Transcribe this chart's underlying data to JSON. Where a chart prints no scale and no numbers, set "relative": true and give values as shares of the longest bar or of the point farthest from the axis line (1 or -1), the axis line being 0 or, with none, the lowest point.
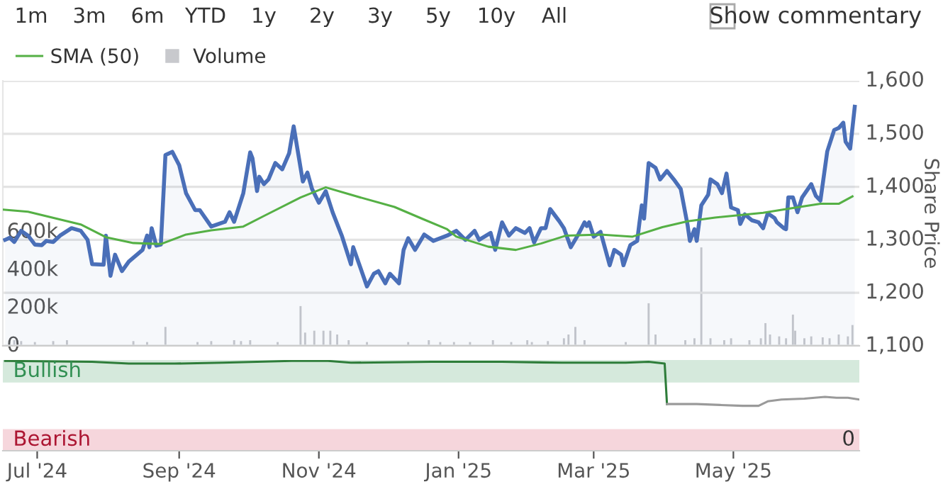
{
  "chart_data": [
    {
      "type": "area",
      "ylabel": "Share Price",
      "legend": "top left",
      "grid": "y",
      "tick_labels": "y",
      "annotations": [
        "1m",
        "3m",
        "6m",
        "YTD",
        "1y",
        "2y",
        "3y",
        "5y",
        "10y",
        "All",
        "Show commentary"
      ],
      "xlim": [
        "2024-06-16",
        "2025-06-25"
      ],
      "ylim": [
        1100,
        1600
      ],
      "yticks": [
        {
          "value": 1100,
          "label": "1,100"
        },
        {
          "value": 1200,
          "label": "1,200"
        },
        {
          "value": 1300,
          "label": "1,300"
        },
        {
          "value": 1400,
          "label": "1,400"
        },
        {
          "value": 1500,
          "label": "1,500"
        },
        {
          "value": 1600,
          "label": "1,600"
        }
      ],
      "y2lim": [
        0,
        1400000
      ],
      "y2ticks": [
        0,
        {
          "value": 200000,
          "label": "200k"
        },
        {
          "value": 400000,
          "label": "400k"
        },
        {
          "value": 600000,
          "label": "600k"
        }
      ],
      "series": [
        {
          "type": "area",
          "color": "#4a6fb8",
          "x": [
            "2024-06-17",
            "2024-06-19",
            "2024-06-21",
            "2024-06-24",
            "2024-06-27",
            "2024-06-30",
            "2024-07-03",
            "2024-07-05",
            "2024-07-08",
            "2024-07-11",
            "2024-07-16",
            "2024-07-20",
            "2024-07-23",
            "2024-07-25",
            "2024-07-30",
            "2024-07-31",
            "2024-08-02",
            "2024-08-04",
            "2024-08-07",
            "2024-08-10",
            "2024-08-16",
            "2024-08-18",
            "2024-08-19",
            "2024-08-20",
            "2024-08-22",
            "2024-08-24",
            "2024-08-26",
            "2024-08-29",
            "2024-09-01",
            "2024-09-04",
            "2024-09-08",
            "2024-09-10",
            "2024-09-15",
            "2024-09-21",
            "2024-09-23",
            "2024-09-25",
            "2024-09-29",
            "2024-10-02",
            "2024-10-03",
            "2024-10-05",
            "2024-10-06",
            "2024-10-08",
            "2024-10-10",
            "2024-10-13",
            "2024-10-16",
            "2024-10-19",
            "2024-10-21",
            "2024-10-25",
            "2024-10-27",
            "2024-10-29",
            "2024-11-01",
            "2024-11-04",
            "2024-11-07",
            "2024-11-11",
            "2024-11-15",
            "2024-11-16",
            "2024-11-22",
            "2024-11-25",
            "2024-11-27",
            "2024-11-30",
            "2024-12-02",
            "2024-12-06",
            "2024-12-08",
            "2024-12-10",
            "2024-12-13",
            "2024-12-17",
            "2024-12-21",
            "2024-12-27",
            "2024-12-31",
            "2025-01-04",
            "2025-01-08",
            "2025-01-10",
            "2025-01-15",
            "2025-01-17",
            "2025-01-20",
            "2025-01-23",
            "2025-01-26",
            "2025-01-30",
            "2025-02-01",
            "2025-02-03",
            "2025-02-06",
            "2025-02-08",
            "2025-02-10",
            "2025-02-14",
            "2025-02-16",
            "2025-02-19",
            "2025-02-22",
            "2025-02-25",
            "2025-02-26",
            "2025-02-27",
            "2025-03-01",
            "2025-03-04",
            "2025-03-08",
            "2025-03-10",
            "2025-03-13",
            "2025-03-14",
            "2025-03-17",
            "2025-03-20",
            "2025-03-21",
            "2025-03-22",
            "2025-03-23",
            "2025-03-25",
            "2025-03-28",
            "2025-03-30",
            "2025-04-02",
            "2025-04-05",
            "2025-04-08",
            "2025-04-11",
            "2025-04-12",
            "2025-04-14",
            "2025-04-15",
            "2025-04-17",
            "2025-04-20",
            "2025-04-21",
            "2025-04-24",
            "2025-04-26",
            "2025-04-28",
            "2025-04-30",
            "2025-05-03",
            "2025-05-04",
            "2025-05-06",
            "2025-05-09",
            "2025-05-12",
            "2025-05-14",
            "2025-05-16",
            "2025-05-19",
            "2025-05-20",
            "2025-05-23",
            "2025-05-24",
            "2025-05-25",
            "2025-05-27",
            "2025-05-29",
            "2025-05-31",
            "2025-06-04",
            "2025-06-06",
            "2025-06-08",
            "2025-06-11",
            "2025-06-14",
            "2025-06-16",
            "2025-06-18",
            "2025-06-19",
            "2025-06-21",
            "2025-06-23"
          ],
          "values": [
            1300,
            1304,
            1296,
            1317,
            1308,
            1291,
            1290,
            1298,
            1296,
            1308,
            1322,
            1317,
            1300,
            1254,
            1253,
            1308,
            1232,
            1272,
            1241,
            1259,
            1281,
            1308,
            1286,
            1322,
            1289,
            1291,
            1460,
            1466,
            1441,
            1388,
            1356,
            1356,
            1325,
            1334,
            1352,
            1334,
            1388,
            1465,
            1454,
            1392,
            1419,
            1405,
            1414,
            1445,
            1433,
            1463,
            1514,
            1410,
            1427,
            1396,
            1370,
            1392,
            1352,
            1308,
            1254,
            1286,
            1212,
            1236,
            1241,
            1218,
            1236,
            1218,
            1281,
            1303,
            1281,
            1310,
            1298,
            1308,
            1317,
            1300,
            1317,
            1300,
            1313,
            1281,
            1333,
            1308,
            1322,
            1313,
            1322,
            1295,
            1322,
            1322,
            1358,
            1335,
            1322,
            1286,
            1308,
            1333,
            1326,
            1333,
            1306,
            1315,
            1252,
            1281,
            1272,
            1252,
            1290,
            1298,
            1333,
            1365,
            1340,
            1445,
            1436,
            1414,
            1430,
            1414,
            1396,
            1328,
            1298,
            1320,
            1298,
            1365,
            1385,
            1414,
            1405,
            1388,
            1425,
            1361,
            1356,
            1330,
            1348,
            1337,
            1333,
            1322,
            1350,
            1341,
            1333,
            1322,
            1320,
            1380,
            1380,
            1352,
            1380,
            1405,
            1383,
            1374,
            1467,
            1507,
            1511,
            1521,
            1485,
            1472,
            1551
          ]
        },
        {
          "type": "line",
          "name": "SMA (50)",
          "color": "#55b045",
          "x": [
            "2024-06-16",
            "2024-06-27",
            "2024-07-20",
            "2024-07-31",
            "2024-08-12",
            "2024-08-24",
            "2024-09-04",
            "2024-09-15",
            "2024-09-29",
            "2024-10-08",
            "2024-10-24",
            "2024-11-04",
            "2024-11-15",
            "2024-12-04",
            "2024-12-16",
            "2024-12-27",
            "2024-12-31",
            "2025-01-14",
            "2025-01-26",
            "2025-02-06",
            "2025-02-17",
            "2025-03-04",
            "2025-03-18",
            "2025-03-31",
            "2025-04-11",
            "2025-04-23",
            "2025-05-14",
            "2025-05-27",
            "2025-06-08",
            "2025-06-16",
            "2025-06-22"
          ],
          "values": [
            1357,
            1353,
            1329,
            1305,
            1294,
            1292,
            1310,
            1318,
            1325,
            1345,
            1380,
            1399,
            1385,
            1362,
            1340,
            1320,
            1306,
            1287,
            1281,
            1293,
            1308,
            1310,
            1306,
            1324,
            1335,
            1342,
            1351,
            1360,
            1368,
            1368,
            1382
          ]
        },
        {
          "type": "bar",
          "name": "Volume",
          "axis": "y2",
          "color": "#c8c9cd",
          "x": [
            "2024-06-21",
            "2024-06-24",
            "2024-06-30",
            "2024-07-08",
            "2024-07-14",
            "2024-07-25",
            "2024-08-03",
            "2024-08-12",
            "2024-08-18",
            "2024-08-26",
            "2024-09-09",
            "2024-09-15",
            "2024-09-25",
            "2024-09-28",
            "2024-10-02",
            "2024-10-14",
            "2024-10-24",
            "2024-10-26",
            "2024-10-30",
            "2024-11-03",
            "2024-11-06",
            "2024-11-09",
            "2024-11-14",
            "2024-11-22",
            "2024-12-10",
            "2024-12-19",
            "2024-12-24",
            "2024-12-30",
            "2025-01-06",
            "2025-01-16",
            "2025-01-24",
            "2025-01-31",
            "2025-02-02",
            "2025-02-09",
            "2025-02-16",
            "2025-02-18",
            "2025-02-21",
            "2025-02-25",
            "2025-03-15",
            "2025-03-25",
            "2025-03-28",
            "2025-04-10",
            "2025-04-14",
            "2025-04-17",
            "2025-04-21",
            "2025-04-27",
            "2025-04-30",
            "2025-05-08",
            "2025-05-13",
            "2025-05-15",
            "2025-05-17",
            "2025-05-21",
            "2025-05-24",
            "2025-05-27",
            "2025-05-28",
            "2025-06-01",
            "2025-06-04",
            "2025-06-09",
            "2025-06-12",
            "2025-06-16",
            "2025-06-20",
            "2025-06-22"
          ],
          "values": [
            30000,
            25000,
            20000,
            25000,
            30000,
            null,
            null,
            25000,
            20000,
            100000,
            20000,
            25000,
            30000,
            25000,
            30000,
            20000,
            210000,
            70000,
            80000,
            80000,
            80000,
            60000,
            30000,
            20000,
            20000,
            30000,
            20000,
            20000,
            20000,
            30000,
            20000,
            30000,
            20000,
            25000,
            40000,
            60000,
            100000,
            30000,
            20000,
            225000,
            60000,
            30000,
            40000,
            520000,
            40000,
            30000,
            40000,
            30000,
            40000,
            120000,
            60000,
            50000,
            40000,
            165000,
            80000,
            40000,
            50000,
            45000,
            40000,
            60000,
            50000,
            110000
          ]
        }
      ]
    },
    {
      "type": "line",
      "relative": true,
      "grid": false,
      "annotations": [
        "0"
      ],
      "xlim": [
        "2024-06-16",
        "2025-06-25"
      ],
      "xticks": [
        {
          "value": "2024-07-01",
          "label": "Jul '24"
        },
        {
          "value": "2024-09-01",
          "label": "Sep '24"
        },
        {
          "value": "2024-11-01",
          "label": "Nov '24"
        },
        {
          "value": "2025-01-01",
          "label": "Jan '25"
        },
        {
          "value": "2025-03-01",
          "label": "Mar '25"
        },
        {
          "value": "2025-05-01",
          "label": "May '25"
        }
      ],
      "bands": [
        {
          "axis": "y",
          "from": 0.76,
          "to": 1.01,
          "label": "Bullish",
          "color": "#d5e9dc"
        },
        {
          "axis": "y",
          "from": 0,
          "to": 0.24,
          "label": "Bearish",
          "color": "#f6d6dc"
        }
      ],
      "series": [
        {
          "color": "#2e7d3a",
          "x": [
            "2024-06-17",
            "2024-07-25",
            "2024-08-10",
            "2024-08-30",
            "2024-09-20",
            "2024-10-20",
            "2024-11-05",
            "2024-11-15",
            "2024-12-20",
            "2025-01-20",
            "2025-02-15",
            "2025-03-15",
            "2025-03-25",
            "2025-04-01",
            "2025-04-02"
          ],
          "values": [
            1.0,
            0.99,
            0.97,
            0.97,
            0.98,
            1.0,
            1.0,
            0.98,
            0.99,
            0.99,
            0.98,
            0.98,
            0.99,
            0.97,
            0.52
          ]
        },
        {
          "color": "#9a9a9a",
          "x": [
            "2025-04-02",
            "2025-04-15",
            "2025-04-25",
            "2025-05-05",
            "2025-05-12",
            "2025-05-16",
            "2025-05-22",
            "2025-06-01",
            "2025-06-10",
            "2025-06-15",
            "2025-06-20",
            "2025-06-25"
          ],
          "values": [
            0.52,
            0.52,
            0.51,
            0.5,
            0.5,
            0.55,
            0.57,
            0.58,
            0.6,
            0.59,
            0.59,
            0.57
          ]
        }
      ]
    }
  ]
}
